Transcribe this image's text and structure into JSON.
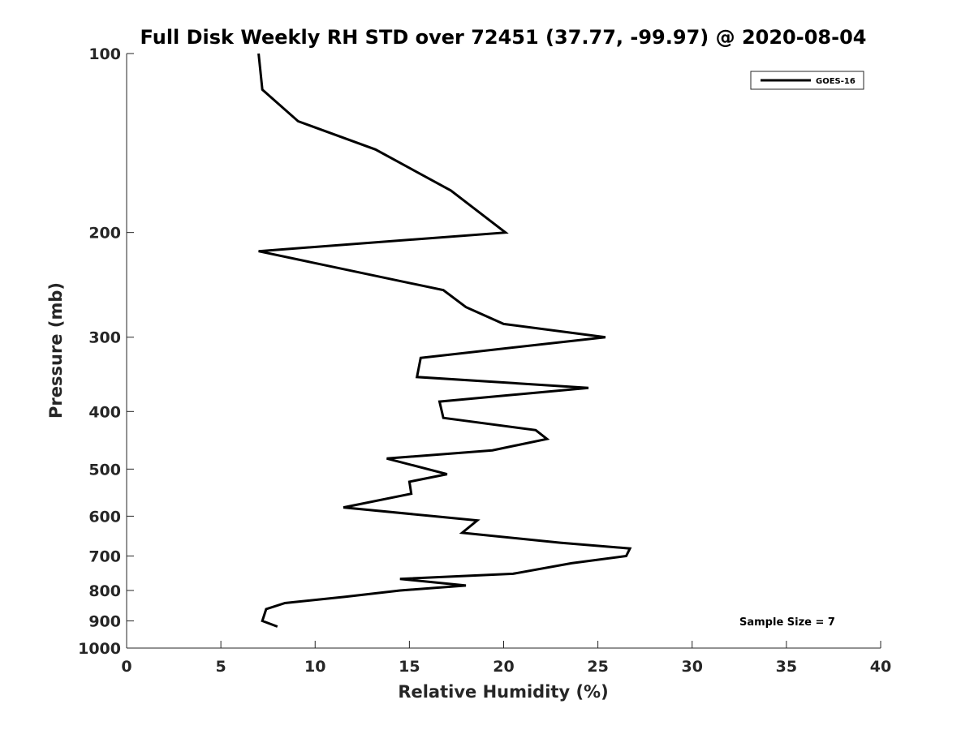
{
  "chart_data": {
    "type": "line",
    "title": "Full Disk Weekly RH STD over 72451 (37.77, -99.97) @ 2020-08-04",
    "xlabel": "Relative Humidity (%)",
    "ylabel": "Pressure (mb)",
    "xlim": [
      0,
      40
    ],
    "ylim": [
      100,
      1000
    ],
    "yscale": "log",
    "yreversed": true,
    "x_ticks": [
      0,
      5,
      10,
      15,
      20,
      25,
      30,
      35,
      40
    ],
    "x_tick_labels": [
      "0",
      "5",
      "10",
      "15",
      "20",
      "25",
      "30",
      "35",
      "40"
    ],
    "y_ticks": [
      100,
      200,
      300,
      400,
      500,
      600,
      700,
      800,
      900,
      1000
    ],
    "y_tick_labels": [
      "100",
      "200",
      "300",
      "400",
      "500",
      "600",
      "700",
      "800",
      "900",
      "1000"
    ],
    "grid": false,
    "legend_position": "top-right",
    "annotation": "Sample Size = 7",
    "series": [
      {
        "name": "GOES-16",
        "color": "#000000",
        "x": [
          7.0,
          7.2,
          9.1,
          13.2,
          17.2,
          20.1,
          7.0,
          16.8,
          18.0,
          20.0,
          25.4,
          15.6,
          15.4,
          24.5,
          16.6,
          16.8,
          21.7,
          22.3,
          19.4,
          13.8,
          17.0,
          15.0,
          15.1,
          11.5,
          18.6,
          17.8,
          23.0,
          26.7,
          26.5,
          23.6,
          20.5,
          14.5,
          18.0,
          14.5,
          11.6,
          8.4,
          7.4,
          7.2,
          8.0
        ],
        "y": [
          100,
          115,
          130,
          145,
          170,
          200,
          215,
          250,
          267,
          285,
          300,
          325,
          350,
          365,
          385,
          410,
          430,
          445,
          465,
          480,
          510,
          525,
          550,
          580,
          610,
          640,
          665,
          680,
          700,
          720,
          750,
          765,
          785,
          800,
          820,
          840,
          860,
          900,
          920
        ]
      }
    ]
  }
}
